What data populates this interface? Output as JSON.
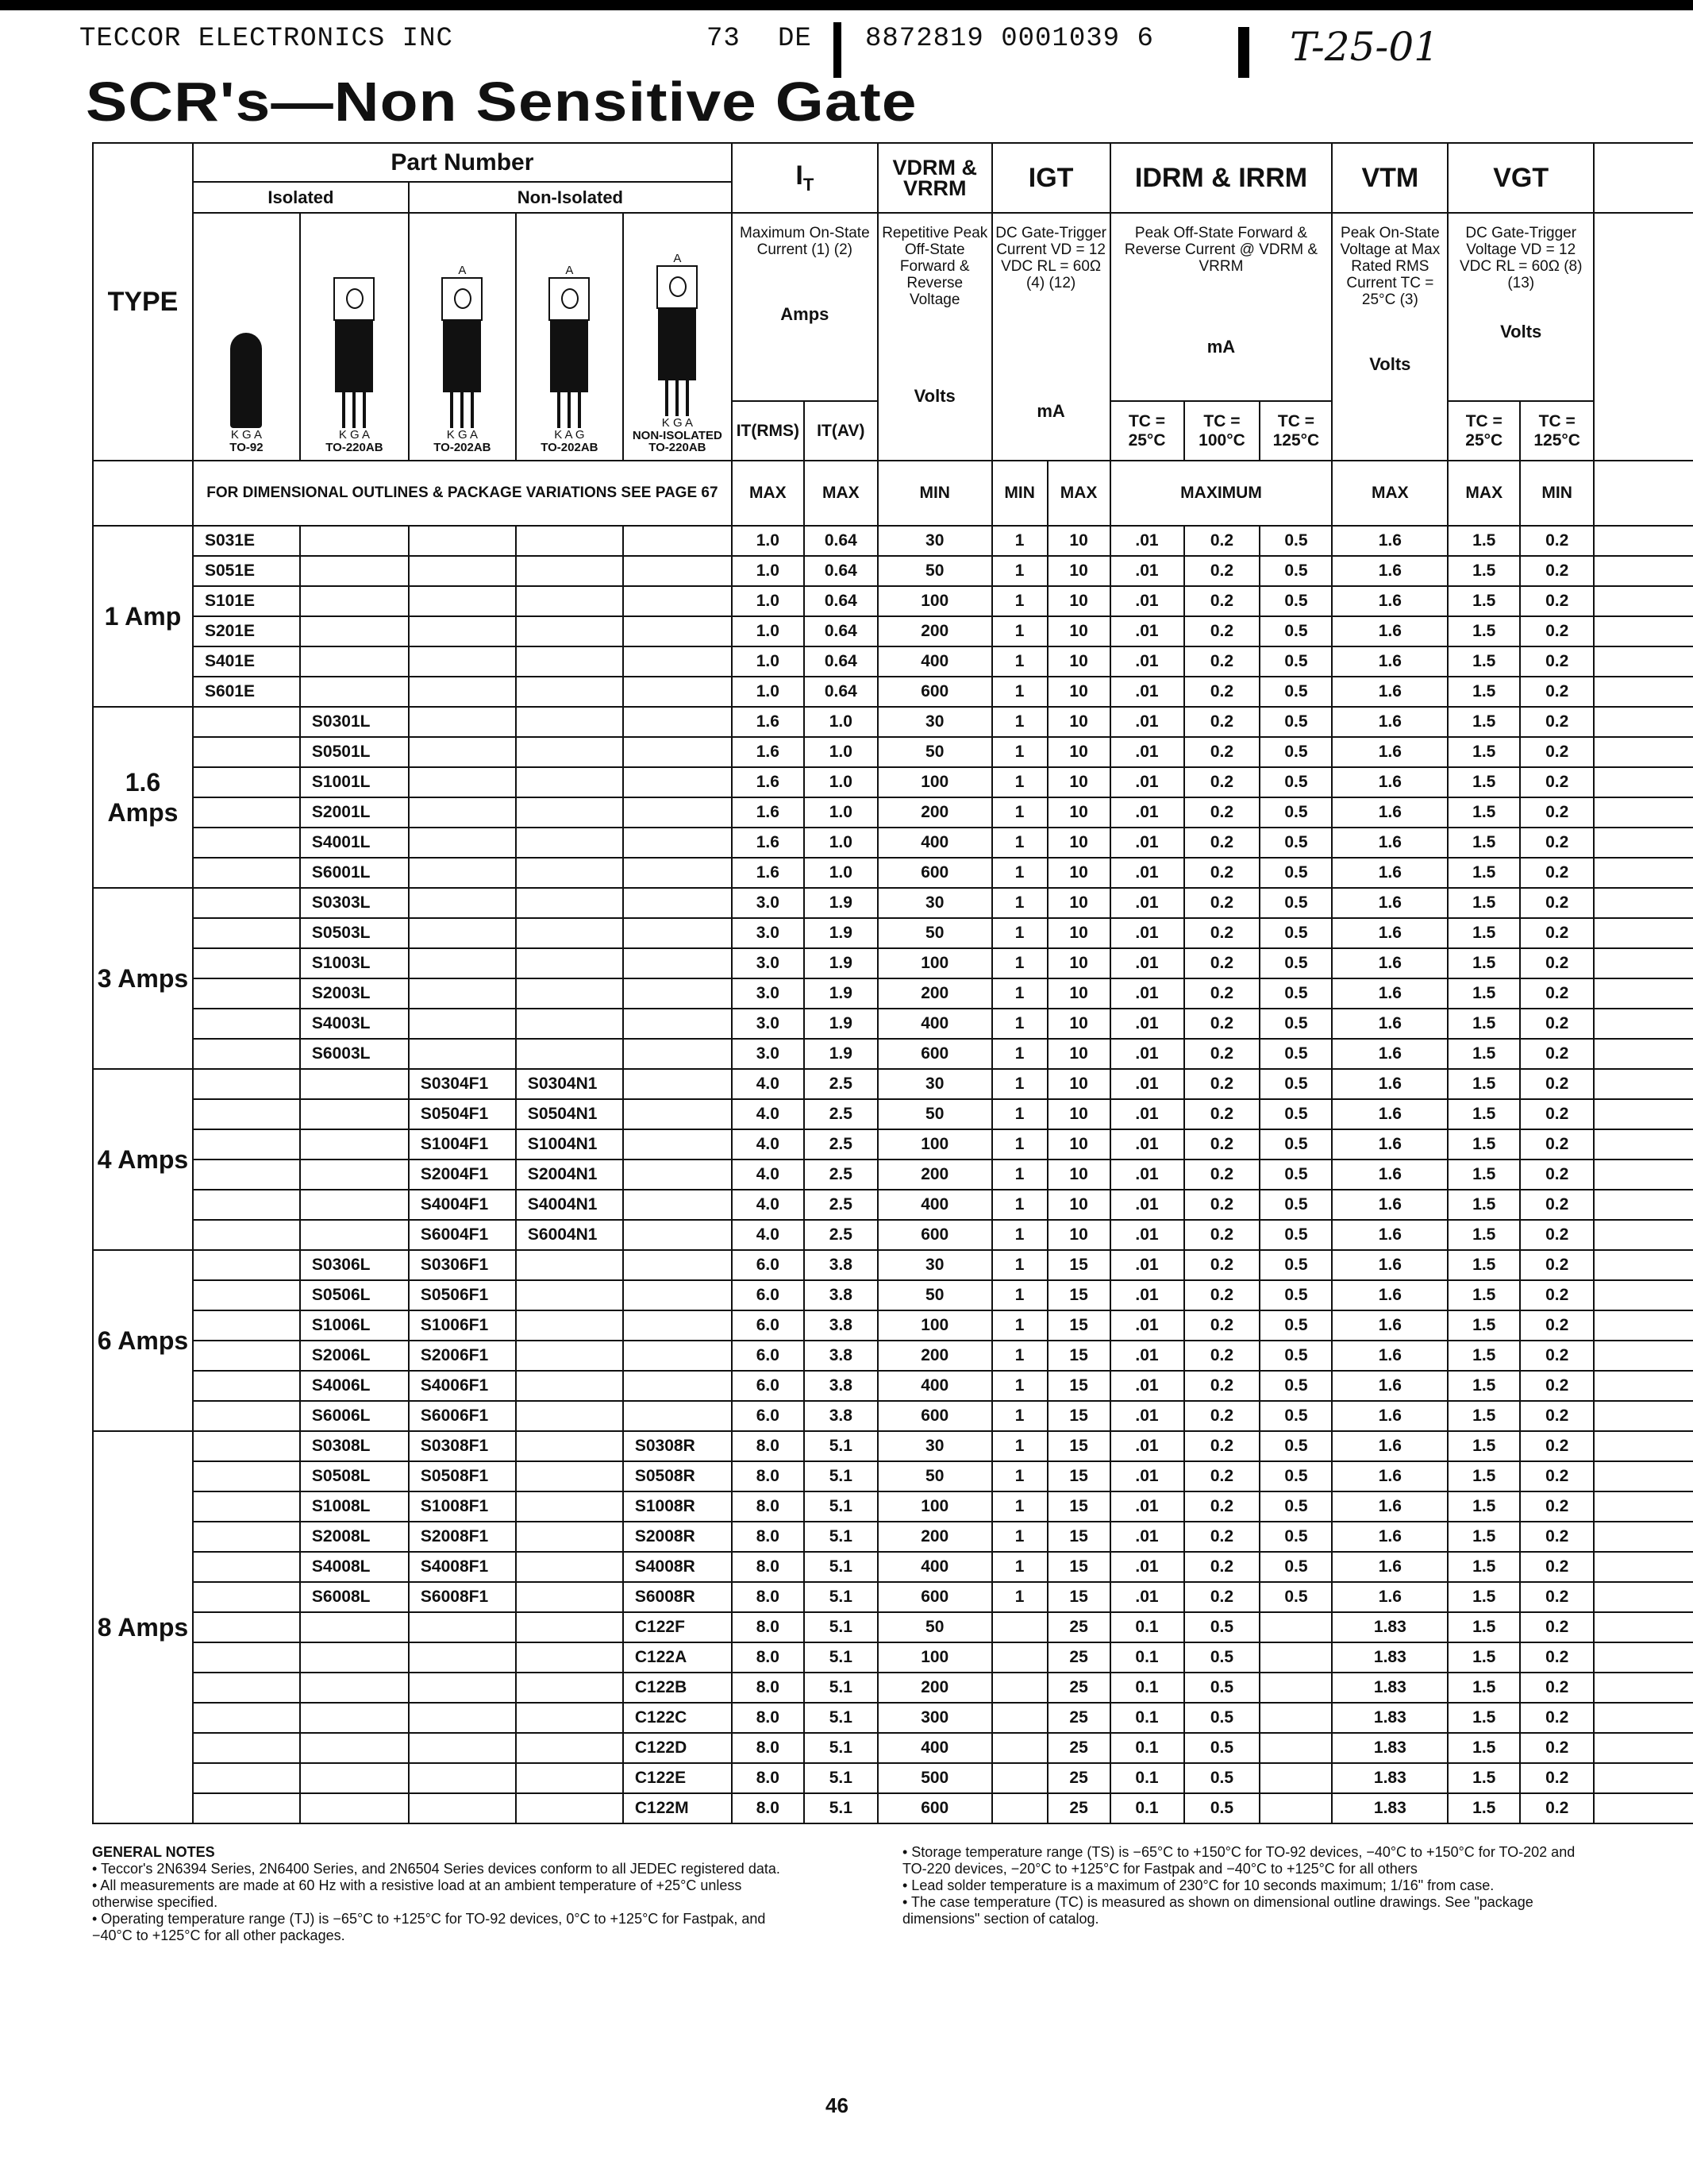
{
  "header": {
    "company": "TECCOR ELECTRONICS INC",
    "code1": "73",
    "code2": "DE",
    "code3": "8872819 0001039 6",
    "handwritten": "T-25-01"
  },
  "title": "SCR's—Non Sensitive Gate",
  "table": {
    "type_label": "TYPE",
    "part_number": "Part Number",
    "isolated": "Isolated",
    "non_isolated": "Non-Isolated",
    "packages": [
      {
        "name": "TO-92",
        "pins": "K G A"
      },
      {
        "name": "TO-220AB",
        "pins": "K G A"
      },
      {
        "name": "TO-202AB",
        "pins": "K G A",
        "tab": "A"
      },
      {
        "name": "TO-202AB",
        "pins": "K A G",
        "tab": "A"
      },
      {
        "name": "NON-ISOLATED TO-220AB",
        "pins": "K G A",
        "tab": "A"
      }
    ],
    "it": {
      "main": "I",
      "sub": "T",
      "desc": "Maximum On-State Current (1) (2)",
      "unit": "Amps",
      "sub1": "IT(RMS)",
      "sub2": "IT(AV)"
    },
    "vdrm": {
      "main": "VDRM & VRRM",
      "desc": "Repetitive Peak Off-State Forward & Reverse Voltage",
      "unit": "Volts"
    },
    "igt": {
      "main": "IGT",
      "desc": "DC Gate-Trigger Current VD = 12 VDC RL = 60Ω (4) (12)",
      "unit": "mA"
    },
    "idrm": {
      "main": "IDRM & IRRM",
      "desc": "Peak Off-State Forward & Reverse Current @ VDRM & VRRM",
      "unit": "mA",
      "t1": "TC = 25°C",
      "t2": "TC = 100°C",
      "t3": "TC = 125°C"
    },
    "vtm": {
      "main": "VTM",
      "desc": "Peak On-State Voltage at Max Rated RMS Current TC = 25°C (3)",
      "unit": "Volts"
    },
    "vgt": {
      "main": "VGT",
      "desc": "DC Gate-Trigger Voltage VD = 12 VDC RL = 60Ω (8) (13)",
      "unit": "Volts",
      "t1": "TC = 25°C",
      "t2": "TC = 125°C"
    },
    "dim_note": "FOR DIMENSIONAL OUTLINES & PACKAGE VARIATIONS SEE PAGE 67",
    "limits": [
      "MAX",
      "MAX",
      "MIN",
      "MIN",
      "MAX",
      "MAXIMUM",
      "MAX",
      "MAX",
      "MIN"
    ],
    "groups": [
      {
        "label": "1 Amp",
        "rows": [
          [
            "S031E",
            "",
            "",
            "",
            "",
            "1.0",
            "0.64",
            "30",
            "1",
            "10",
            ".01",
            "0.2",
            "0.5",
            "1.6",
            "1.5",
            "0.2"
          ],
          [
            "S051E",
            "",
            "",
            "",
            "",
            "1.0",
            "0.64",
            "50",
            "1",
            "10",
            ".01",
            "0.2",
            "0.5",
            "1.6",
            "1.5",
            "0.2"
          ],
          [
            "S101E",
            "",
            "",
            "",
            "",
            "1.0",
            "0.64",
            "100",
            "1",
            "10",
            ".01",
            "0.2",
            "0.5",
            "1.6",
            "1.5",
            "0.2"
          ],
          [
            "S201E",
            "",
            "",
            "",
            "",
            "1.0",
            "0.64",
            "200",
            "1",
            "10",
            ".01",
            "0.2",
            "0.5",
            "1.6",
            "1.5",
            "0.2"
          ],
          [
            "S401E",
            "",
            "",
            "",
            "",
            "1.0",
            "0.64",
            "400",
            "1",
            "10",
            ".01",
            "0.2",
            "0.5",
            "1.6",
            "1.5",
            "0.2"
          ],
          [
            "S601E",
            "",
            "",
            "",
            "",
            "1.0",
            "0.64",
            "600",
            "1",
            "10",
            ".01",
            "0.2",
            "0.5",
            "1.6",
            "1.5",
            "0.2"
          ]
        ]
      },
      {
        "label": "1.6 Amps",
        "rows": [
          [
            "",
            "S0301L",
            "",
            "",
            "",
            "1.6",
            "1.0",
            "30",
            "1",
            "10",
            ".01",
            "0.2",
            "0.5",
            "1.6",
            "1.5",
            "0.2"
          ],
          [
            "",
            "S0501L",
            "",
            "",
            "",
            "1.6",
            "1.0",
            "50",
            "1",
            "10",
            ".01",
            "0.2",
            "0.5",
            "1.6",
            "1.5",
            "0.2"
          ],
          [
            "",
            "S1001L",
            "",
            "",
            "",
            "1.6",
            "1.0",
            "100",
            "1",
            "10",
            ".01",
            "0.2",
            "0.5",
            "1.6",
            "1.5",
            "0.2"
          ],
          [
            "",
            "S2001L",
            "",
            "",
            "",
            "1.6",
            "1.0",
            "200",
            "1",
            "10",
            ".01",
            "0.2",
            "0.5",
            "1.6",
            "1.5",
            "0.2"
          ],
          [
            "",
            "S4001L",
            "",
            "",
            "",
            "1.6",
            "1.0",
            "400",
            "1",
            "10",
            ".01",
            "0.2",
            "0.5",
            "1.6",
            "1.5",
            "0.2"
          ],
          [
            "",
            "S6001L",
            "",
            "",
            "",
            "1.6",
            "1.0",
            "600",
            "1",
            "10",
            ".01",
            "0.2",
            "0.5",
            "1.6",
            "1.5",
            "0.2"
          ]
        ]
      },
      {
        "label": "3 Amps",
        "rows": [
          [
            "",
            "S0303L",
            "",
            "",
            "",
            "3.0",
            "1.9",
            "30",
            "1",
            "10",
            ".01",
            "0.2",
            "0.5",
            "1.6",
            "1.5",
            "0.2"
          ],
          [
            "",
            "S0503L",
            "",
            "",
            "",
            "3.0",
            "1.9",
            "50",
            "1",
            "10",
            ".01",
            "0.2",
            "0.5",
            "1.6",
            "1.5",
            "0.2"
          ],
          [
            "",
            "S1003L",
            "",
            "",
            "",
            "3.0",
            "1.9",
            "100",
            "1",
            "10",
            ".01",
            "0.2",
            "0.5",
            "1.6",
            "1.5",
            "0.2"
          ],
          [
            "",
            "S2003L",
            "",
            "",
            "",
            "3.0",
            "1.9",
            "200",
            "1",
            "10",
            ".01",
            "0.2",
            "0.5",
            "1.6",
            "1.5",
            "0.2"
          ],
          [
            "",
            "S4003L",
            "",
            "",
            "",
            "3.0",
            "1.9",
            "400",
            "1",
            "10",
            ".01",
            "0.2",
            "0.5",
            "1.6",
            "1.5",
            "0.2"
          ],
          [
            "",
            "S6003L",
            "",
            "",
            "",
            "3.0",
            "1.9",
            "600",
            "1",
            "10",
            ".01",
            "0.2",
            "0.5",
            "1.6",
            "1.5",
            "0.2"
          ]
        ]
      },
      {
        "label": "4 Amps",
        "rows": [
          [
            "",
            "",
            "S0304F1",
            "S0304N1",
            "",
            "4.0",
            "2.5",
            "30",
            "1",
            "10",
            ".01",
            "0.2",
            "0.5",
            "1.6",
            "1.5",
            "0.2"
          ],
          [
            "",
            "",
            "S0504F1",
            "S0504N1",
            "",
            "4.0",
            "2.5",
            "50",
            "1",
            "10",
            ".01",
            "0.2",
            "0.5",
            "1.6",
            "1.5",
            "0.2"
          ],
          [
            "",
            "",
            "S1004F1",
            "S1004N1",
            "",
            "4.0",
            "2.5",
            "100",
            "1",
            "10",
            ".01",
            "0.2",
            "0.5",
            "1.6",
            "1.5",
            "0.2"
          ],
          [
            "",
            "",
            "S2004F1",
            "S2004N1",
            "",
            "4.0",
            "2.5",
            "200",
            "1",
            "10",
            ".01",
            "0.2",
            "0.5",
            "1.6",
            "1.5",
            "0.2"
          ],
          [
            "",
            "",
            "S4004F1",
            "S4004N1",
            "",
            "4.0",
            "2.5",
            "400",
            "1",
            "10",
            ".01",
            "0.2",
            "0.5",
            "1.6",
            "1.5",
            "0.2"
          ],
          [
            "",
            "",
            "S6004F1",
            "S6004N1",
            "",
            "4.0",
            "2.5",
            "600",
            "1",
            "10",
            ".01",
            "0.2",
            "0.5",
            "1.6",
            "1.5",
            "0.2"
          ]
        ]
      },
      {
        "label": "6 Amps",
        "rows": [
          [
            "",
            "S0306L",
            "S0306F1",
            "",
            "",
            "6.0",
            "3.8",
            "30",
            "1",
            "15",
            ".01",
            "0.2",
            "0.5",
            "1.6",
            "1.5",
            "0.2"
          ],
          [
            "",
            "S0506L",
            "S0506F1",
            "",
            "",
            "6.0",
            "3.8",
            "50",
            "1",
            "15",
            ".01",
            "0.2",
            "0.5",
            "1.6",
            "1.5",
            "0.2"
          ],
          [
            "",
            "S1006L",
            "S1006F1",
            "",
            "",
            "6.0",
            "3.8",
            "100",
            "1",
            "15",
            ".01",
            "0.2",
            "0.5",
            "1.6",
            "1.5",
            "0.2"
          ],
          [
            "",
            "S2006L",
            "S2006F1",
            "",
            "",
            "6.0",
            "3.8",
            "200",
            "1",
            "15",
            ".01",
            "0.2",
            "0.5",
            "1.6",
            "1.5",
            "0.2"
          ],
          [
            "",
            "S4006L",
            "S4006F1",
            "",
            "",
            "6.0",
            "3.8",
            "400",
            "1",
            "15",
            ".01",
            "0.2",
            "0.5",
            "1.6",
            "1.5",
            "0.2"
          ],
          [
            "",
            "S6006L",
            "S6006F1",
            "",
            "",
            "6.0",
            "3.8",
            "600",
            "1",
            "15",
            ".01",
            "0.2",
            "0.5",
            "1.6",
            "1.5",
            "0.2"
          ]
        ]
      },
      {
        "label": "8 Amps",
        "rows": [
          [
            "",
            "S0308L",
            "S0308F1",
            "",
            "S0308R",
            "8.0",
            "5.1",
            "30",
            "1",
            "15",
            ".01",
            "0.2",
            "0.5",
            "1.6",
            "1.5",
            "0.2"
          ],
          [
            "",
            "S0508L",
            "S0508F1",
            "",
            "S0508R",
            "8.0",
            "5.1",
            "50",
            "1",
            "15",
            ".01",
            "0.2",
            "0.5",
            "1.6",
            "1.5",
            "0.2"
          ],
          [
            "",
            "S1008L",
            "S1008F1",
            "",
            "S1008R",
            "8.0",
            "5.1",
            "100",
            "1",
            "15",
            ".01",
            "0.2",
            "0.5",
            "1.6",
            "1.5",
            "0.2"
          ],
          [
            "",
            "S2008L",
            "S2008F1",
            "",
            "S2008R",
            "8.0",
            "5.1",
            "200",
            "1",
            "15",
            ".01",
            "0.2",
            "0.5",
            "1.6",
            "1.5",
            "0.2"
          ],
          [
            "",
            "S4008L",
            "S4008F1",
            "",
            "S4008R",
            "8.0",
            "5.1",
            "400",
            "1",
            "15",
            ".01",
            "0.2",
            "0.5",
            "1.6",
            "1.5",
            "0.2"
          ],
          [
            "",
            "S6008L",
            "S6008F1",
            "",
            "S6008R",
            "8.0",
            "5.1",
            "600",
            "1",
            "15",
            ".01",
            "0.2",
            "0.5",
            "1.6",
            "1.5",
            "0.2"
          ],
          [
            "",
            "",
            "",
            "",
            "C122F",
            "8.0",
            "5.1",
            "50",
            "",
            "25",
            "0.1",
            "0.5",
            "",
            "1.83",
            "1.5",
            "0.2"
          ],
          [
            "",
            "",
            "",
            "",
            "C122A",
            "8.0",
            "5.1",
            "100",
            "",
            "25",
            "0.1",
            "0.5",
            "",
            "1.83",
            "1.5",
            "0.2"
          ],
          [
            "",
            "",
            "",
            "",
            "C122B",
            "8.0",
            "5.1",
            "200",
            "",
            "25",
            "0.1",
            "0.5",
            "",
            "1.83",
            "1.5",
            "0.2"
          ],
          [
            "",
            "",
            "",
            "",
            "C122C",
            "8.0",
            "5.1",
            "300",
            "",
            "25",
            "0.1",
            "0.5",
            "",
            "1.83",
            "1.5",
            "0.2"
          ],
          [
            "",
            "",
            "",
            "",
            "C122D",
            "8.0",
            "5.1",
            "400",
            "",
            "25",
            "0.1",
            "0.5",
            "",
            "1.83",
            "1.5",
            "0.2"
          ],
          [
            "",
            "",
            "",
            "",
            "C122E",
            "8.0",
            "5.1",
            "500",
            "",
            "25",
            "0.1",
            "0.5",
            "",
            "1.83",
            "1.5",
            "0.2"
          ],
          [
            "",
            "",
            "",
            "",
            "C122M",
            "8.0",
            "5.1",
            "600",
            "",
            "25",
            "0.1",
            "0.5",
            "",
            "1.83",
            "1.5",
            "0.2"
          ]
        ]
      }
    ]
  },
  "notes": {
    "heading": "GENERAL NOTES",
    "left": [
      "• Teccor's 2N6394 Series, 2N6400 Series, and 2N6504 Series devices conform to all JEDEC registered data.",
      "• All measurements are made at 60 Hz with a resistive load at an ambient temperature of +25°C unless otherwise specified.",
      "• Operating temperature range (TJ) is −65°C to +125°C for TO-92 devices, 0°C to +125°C for Fastpak, and −40°C to +125°C for all other packages."
    ],
    "right": [
      "• Storage temperature range (TS) is −65°C to +150°C for TO-92 devices, −40°C to +150°C for TO-202 and TO-220 devices, −20°C to +125°C for Fastpak and −40°C to +125°C for all others",
      "• Lead solder temperature is a maximum of 230°C for 10 seconds maximum; 1/16\" from case.",
      "• The case temperature (TC) is measured as shown on dimensional outline drawings. See \"package dimensions\" section of catalog."
    ]
  },
  "page_number": "46"
}
